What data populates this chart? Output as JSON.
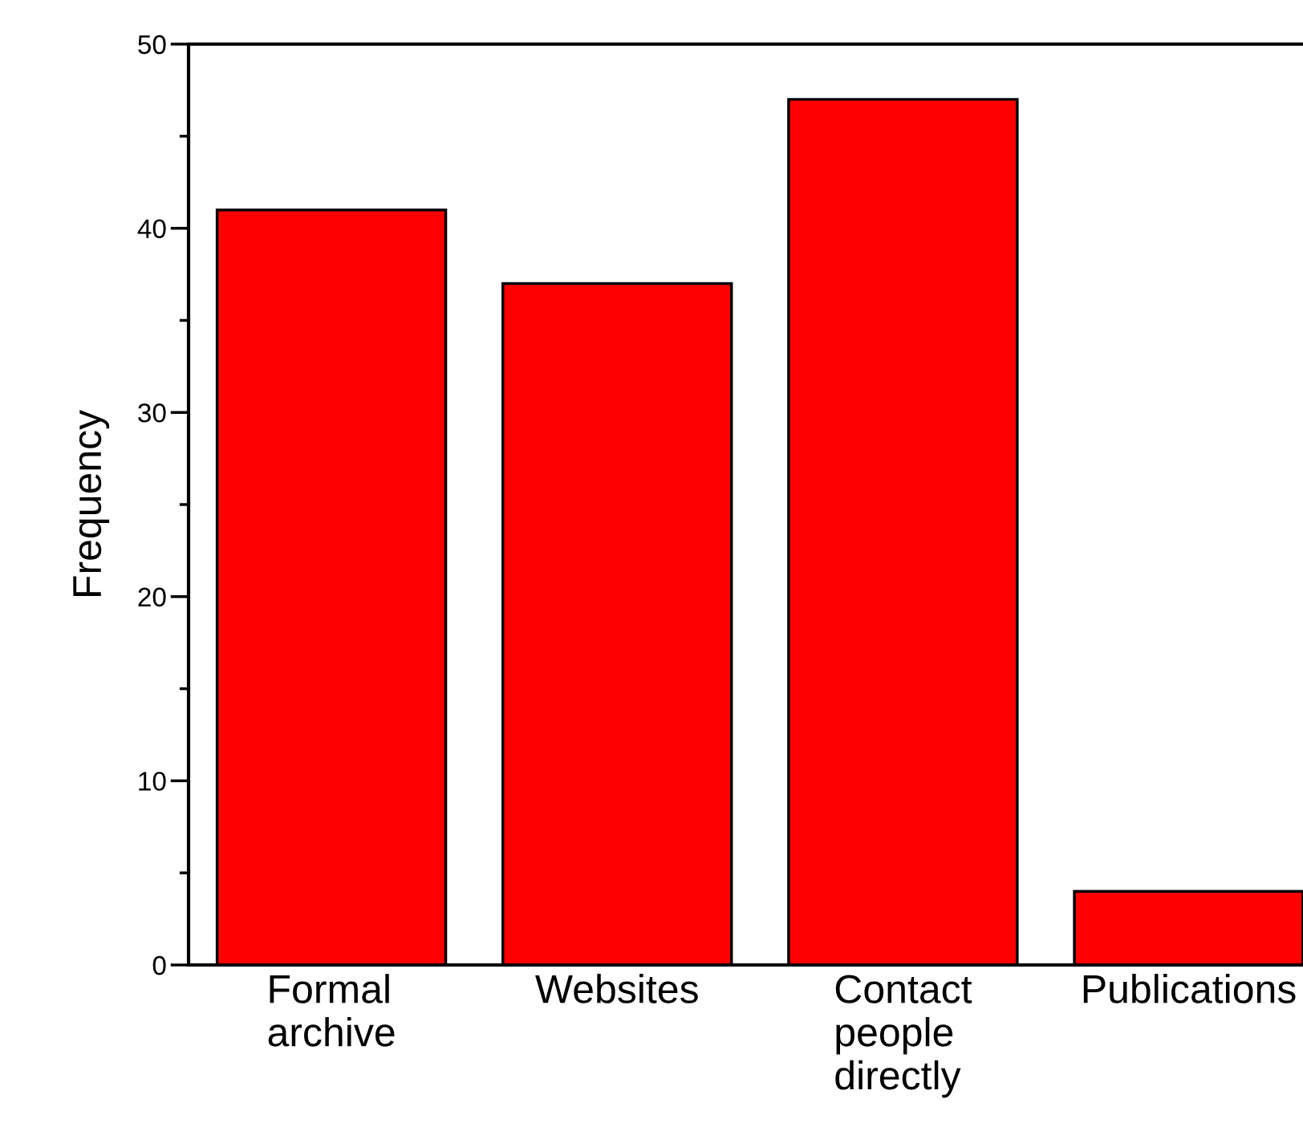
{
  "chart_data": {
    "type": "bar",
    "ylabel": "Frequency",
    "categories": [
      "Formal\narchive",
      "Websites",
      "Contact\npeople\ndirectly",
      "Publications"
    ],
    "values": [
      41,
      37,
      47,
      4
    ],
    "color": "#ff0000",
    "ylim": [
      0,
      50
    ],
    "yticks": [
      0,
      10,
      20,
      30,
      40,
      50
    ],
    "grid": false,
    "legend": false
  }
}
